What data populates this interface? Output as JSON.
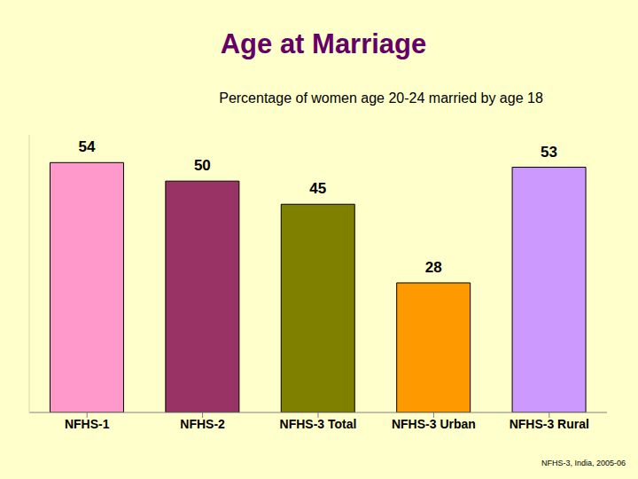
{
  "chart_data": {
    "type": "bar",
    "title": "Age at Marriage",
    "subtitle": "Percentage of women age 20-24 married by age 18",
    "categories": [
      "NFHS-1",
      "NFHS-2",
      "NFHS-3 Total",
      "NFHS-3 Urban",
      "NFHS-3 Rural"
    ],
    "values": [
      54,
      50,
      45,
      28,
      53
    ],
    "colors": [
      "#ff99cc",
      "#993366",
      "#808000",
      "#ff9900",
      "#cc99ff"
    ],
    "ylim": [
      0,
      60
    ],
    "data_labels": true,
    "tick_labels": "x",
    "grid": false,
    "annotations": [
      "NFHS-3, India, 2005-06"
    ]
  }
}
